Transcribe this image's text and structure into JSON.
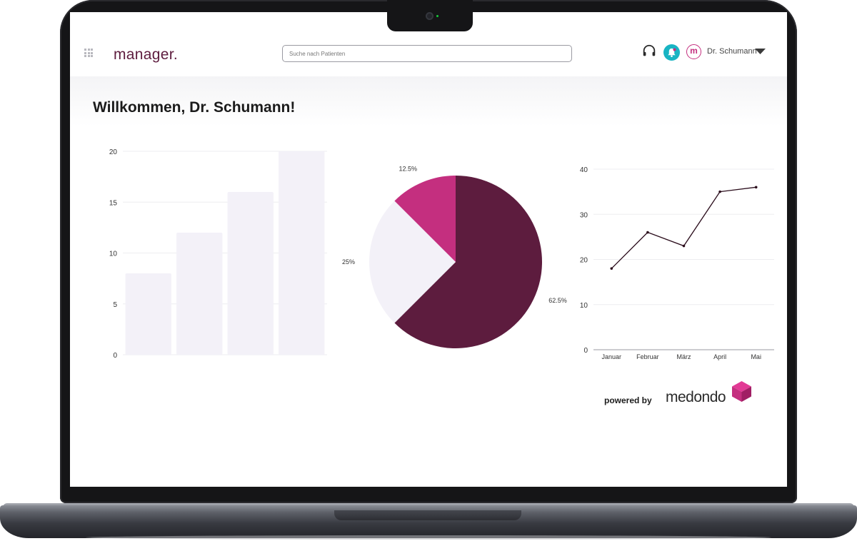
{
  "header": {
    "logo": "manager.",
    "search_placeholder": "Suche nach Patienten",
    "user_initial": "m",
    "user_name": "Dr. Schumann",
    "icons": [
      "apps-grid-icon",
      "headset-icon",
      "bell-icon",
      "chevron-down-icon"
    ]
  },
  "main": {
    "welcome": "Willkommen, Dr. Schumann!"
  },
  "footer": {
    "powered_by": "powered by",
    "brand": "medondo"
  },
  "colors": {
    "brand_dark": "#5d1c3e",
    "brand_pink": "#c42f7f",
    "bar_fill": "#f3f1f8",
    "pie_light": "#f3f1f8",
    "accent_teal": "#18b4c3"
  },
  "chart_data": [
    {
      "type": "bar",
      "categories": [
        "",
        "",
        "",
        ""
      ],
      "values": [
        8,
        12,
        16,
        20
      ],
      "ylim": [
        0,
        20
      ],
      "yticks": [
        "0",
        "5",
        "10",
        "15",
        "20"
      ],
      "grid": true
    },
    {
      "type": "pie",
      "slices": [
        {
          "label": "62.5%",
          "value": 62.5,
          "color": "#5d1c3e"
        },
        {
          "label": "25%",
          "value": 25,
          "color": "#f3f1f8"
        },
        {
          "label": "12.5%",
          "value": 12.5,
          "color": "#c42f7f"
        }
      ]
    },
    {
      "type": "line",
      "x": [
        "Januar",
        "Februar",
        "März",
        "April",
        "Mai"
      ],
      "y": [
        18,
        26,
        23,
        35,
        36
      ],
      "ylim": [
        0,
        40
      ],
      "yticks": [
        "0",
        "10",
        "20",
        "30",
        "40"
      ],
      "grid": true
    }
  ]
}
